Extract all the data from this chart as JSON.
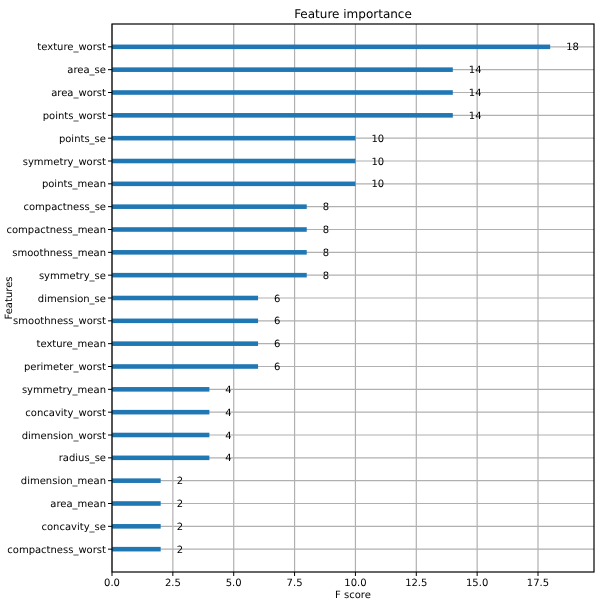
{
  "chart_data": {
    "type": "bar",
    "orientation": "horizontal",
    "title": "Feature importance",
    "xlabel": "F score",
    "ylabel": "Features",
    "categories": [
      "texture_worst",
      "area_se",
      "area_worst",
      "points_worst",
      "points_se",
      "symmetry_worst",
      "points_mean",
      "compactness_se",
      "compactness_mean",
      "smoothness_mean",
      "symmetry_se",
      "dimension_se",
      "smoothness_worst",
      "texture_mean",
      "perimeter_worst",
      "symmetry_mean",
      "concavity_worst",
      "dimension_worst",
      "radius_se",
      "dimension_mean",
      "area_mean",
      "concavity_se",
      "compactness_worst"
    ],
    "values": [
      18,
      14,
      14,
      14,
      10,
      10,
      10,
      8,
      8,
      8,
      8,
      6,
      6,
      6,
      6,
      4,
      4,
      4,
      4,
      2,
      2,
      2,
      2
    ],
    "color": "#1f77b4",
    "data_labels": true,
    "grid": true,
    "xlim": [
      0,
      19.8
    ],
    "xticks": [
      {
        "value": 0,
        "label": "0.0"
      },
      {
        "value": 2.5,
        "label": "2.5"
      },
      {
        "value": 5,
        "label": "5.0"
      },
      {
        "value": 7.5,
        "label": "7.5"
      },
      {
        "value": 10,
        "label": "10.0"
      },
      {
        "value": 12.5,
        "label": "12.5"
      },
      {
        "value": 15,
        "label": "15.0"
      },
      {
        "value": 17.5,
        "label": "17.5"
      }
    ]
  }
}
